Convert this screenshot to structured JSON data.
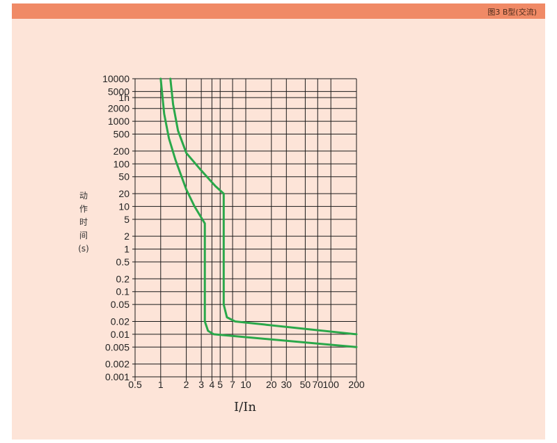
{
  "header": {
    "title": "图3   B型(交流)"
  },
  "chart_data": {
    "type": "line",
    "title": "图3   B型(交流)",
    "xlabel": "I/In",
    "ylabel_chars": [
      "动",
      "作",
      "时",
      "间",
      "(s)"
    ],
    "x_scale": "log",
    "y_scale": "log",
    "xlim": [
      0.5,
      200
    ],
    "ylim": [
      0.001,
      10000
    ],
    "x_ticks": [
      {
        "v": 0.5,
        "label": "0.5"
      },
      {
        "v": 1,
        "label": "1"
      },
      {
        "v": 2,
        "label": "2"
      },
      {
        "v": 3,
        "label": "3"
      },
      {
        "v": 4,
        "label": "4"
      },
      {
        "v": 5,
        "label": "5"
      },
      {
        "v": 7,
        "label": "7"
      },
      {
        "v": 10,
        "label": "10"
      },
      {
        "v": 20,
        "label": "20"
      },
      {
        "v": 30,
        "label": "30"
      },
      {
        "v": 50,
        "label": "50"
      },
      {
        "v": 70,
        "label": "70"
      },
      {
        "v": 100,
        "label": "100"
      },
      {
        "v": 200,
        "label": "200"
      }
    ],
    "x_gridlines": [
      0.5,
      1,
      2,
      3,
      4,
      5,
      7,
      10,
      20,
      30,
      50,
      70,
      100,
      200
    ],
    "y_ticks": [
      {
        "v": 10000,
        "label": "10000"
      },
      {
        "v": 5000,
        "label": "5000"
      },
      {
        "v": 3600,
        "label": "1h"
      },
      {
        "v": 2000,
        "label": "2000"
      },
      {
        "v": 1000,
        "label": "1000"
      },
      {
        "v": 500,
        "label": "500"
      },
      {
        "v": 200,
        "label": "200"
      },
      {
        "v": 100,
        "label": "100"
      },
      {
        "v": 50,
        "label": "50"
      },
      {
        "v": 20,
        "label": "20"
      },
      {
        "v": 10,
        "label": "10"
      },
      {
        "v": 5,
        "label": "5"
      },
      {
        "v": 2,
        "label": "2"
      },
      {
        "v": 1,
        "label": "1"
      },
      {
        "v": 0.5,
        "label": "0.5"
      },
      {
        "v": 0.2,
        "label": "0.2"
      },
      {
        "v": 0.1,
        "label": "0.1"
      },
      {
        "v": 0.05,
        "label": "0.05"
      },
      {
        "v": 0.02,
        "label": "0.02"
      },
      {
        "v": 0.01,
        "label": "0.01"
      },
      {
        "v": 0.005,
        "label": "0.005"
      },
      {
        "v": 0.002,
        "label": "0.002"
      },
      {
        "v": 0.001,
        "label": "0.001"
      }
    ],
    "line_color": "#2aa84a",
    "grid_color": "#1a1a1a",
    "series": [
      {
        "points": [
          [
            1.0,
            10000
          ],
          [
            1.1,
            1500
          ],
          [
            1.25,
            400
          ],
          [
            1.5,
            120
          ],
          [
            2.0,
            25
          ],
          [
            2.5,
            10
          ],
          [
            3.3,
            4
          ],
          [
            3.3,
            0.02
          ],
          [
            3.6,
            0.012
          ],
          [
            4.2,
            0.01
          ],
          [
            200,
            0.005
          ]
        ]
      },
      {
        "points": [
          [
            1.3,
            10000
          ],
          [
            1.4,
            2500
          ],
          [
            1.6,
            600
          ],
          [
            2.0,
            180
          ],
          [
            3.0,
            70
          ],
          [
            4.4,
            30
          ],
          [
            5.5,
            20
          ],
          [
            5.5,
            0.05
          ],
          [
            6.0,
            0.025
          ],
          [
            7.5,
            0.02
          ],
          [
            200,
            0.01
          ]
        ]
      }
    ]
  }
}
